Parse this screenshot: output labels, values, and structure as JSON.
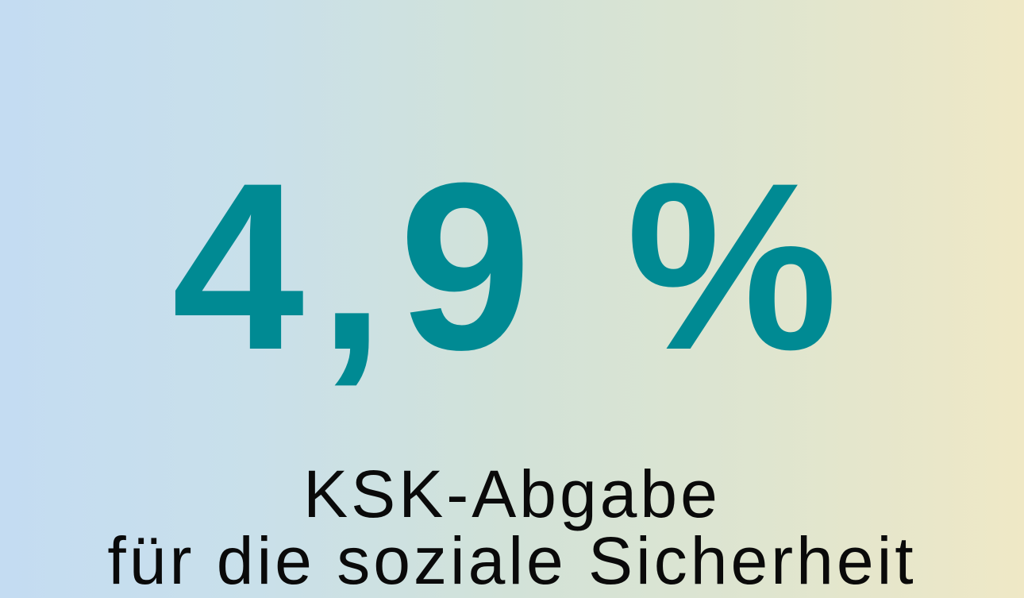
{
  "headline": {
    "value": "4,9 %",
    "color": "#008a93"
  },
  "subtitle": {
    "line1": "KSK-Abgabe",
    "line2": "für die soziale Sicherheit"
  },
  "background": {
    "gradient_from": "#c4dcf2",
    "gradient_to": "#efe8c6"
  }
}
